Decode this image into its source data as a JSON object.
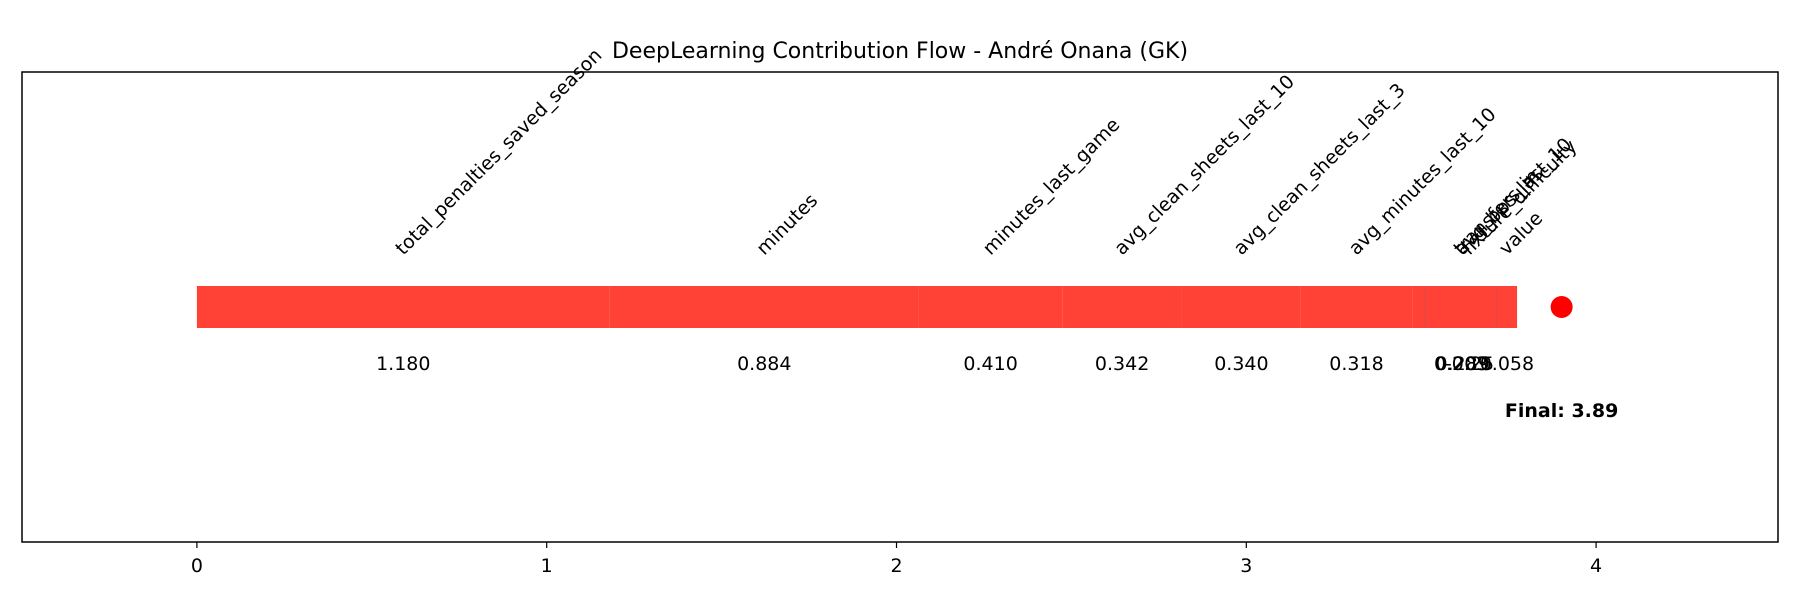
{
  "chart_data": {
    "type": "waterfall",
    "title": "DeepLearning Contribution Flow - André Onana (GK)",
    "xlim": [
      -0.5,
      4.52
    ],
    "x_ticks": [
      "0",
      "1",
      "2",
      "3",
      "4"
    ],
    "contributions": [
      {
        "feature": "total_penalties_saved_season",
        "value": 1.18,
        "label": "1.180"
      },
      {
        "feature": "minutes",
        "value": 0.884,
        "label": "0.884"
      },
      {
        "feature": "minutes_last_game",
        "value": 0.41,
        "label": "0.410"
      },
      {
        "feature": "avg_clean_sheets_last_10",
        "value": 0.342,
        "label": "0.342"
      },
      {
        "feature": "avg_clean_sheets_last_3",
        "value": 0.34,
        "label": "0.340"
      },
      {
        "feature": "avg_minutes_last_10",
        "value": 0.318,
        "label": "0.318"
      },
      {
        "feature": "avg_bps_last_10",
        "value": 0.289,
        "label": "0.289"
      },
      {
        "feature": "fixture_difficulty",
        "value": -0.25,
        "label": "-0.25"
      },
      {
        "feature": "transfers_in",
        "value": 0.203,
        "label": "0.203"
      },
      {
        "feature": "value",
        "value": 0.058,
        "label": "0.058"
      }
    ],
    "final_value": 3.89,
    "final_label": "Final: 3.89",
    "colors": {
      "positive": "#ff4136",
      "negative": "#0074d9",
      "final_marker": "#ff0000"
    },
    "grid": false,
    "legend": "none"
  }
}
